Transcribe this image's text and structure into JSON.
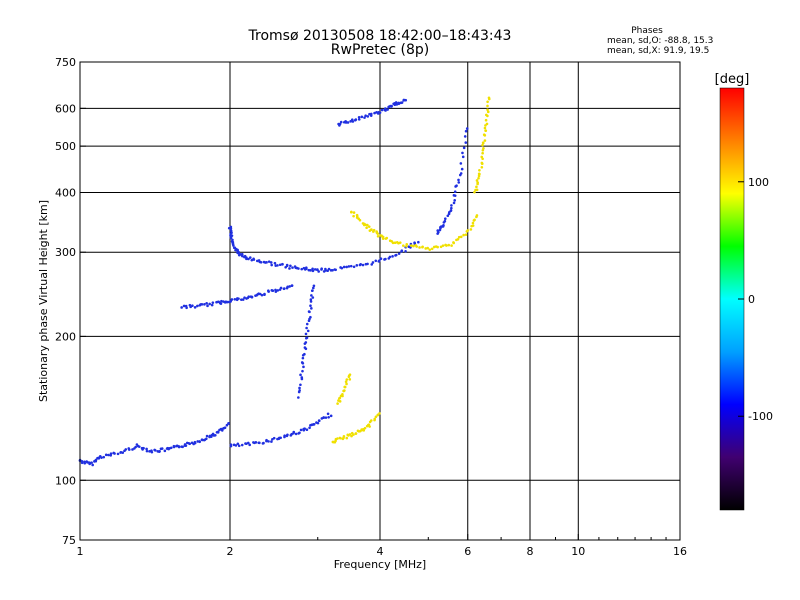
{
  "chart_data": {
    "type": "scatter",
    "title": "Tromsø 20130508 18:42:00–18:43:43",
    "subtitle": "RwPretec (8p)",
    "xlabel": "Frequency [MHz]",
    "ylabel": "Stationary phase Virtual Height [km]",
    "x_scale": "log",
    "y_scale": "log",
    "xlim": [
      1,
      16
    ],
    "ylim": [
      75,
      750
    ],
    "x_ticks": [
      {
        "value": 1,
        "label": "1"
      },
      {
        "value": 2,
        "label": "2"
      },
      {
        "value": 4,
        "label": "4"
      },
      {
        "value": 6,
        "label": "6"
      },
      {
        "value": 8,
        "label": "8"
      },
      {
        "value": 10,
        "label": "10"
      },
      {
        "value": 16,
        "label": "16"
      }
    ],
    "y_ticks": [
      {
        "value": 75,
        "label": "75"
      },
      {
        "value": 100,
        "label": "100"
      },
      {
        "value": 200,
        "label": "200"
      },
      {
        "value": 300,
        "label": "300"
      },
      {
        "value": 400,
        "label": "400"
      },
      {
        "value": 500,
        "label": "500"
      },
      {
        "value": 600,
        "label": "600"
      },
      {
        "value": 750,
        "label": "750"
      }
    ],
    "grid": true,
    "stats": {
      "header": "Phases",
      "line1": "mean, sd,O: -88.8, 15.3",
      "line2": "mean, sd,X:  91.9, 19.5"
    },
    "colorbar": {
      "label": "[deg]",
      "range": [
        -180,
        180
      ],
      "tick_labels": [
        "100",
        "0",
        "-100"
      ],
      "tick_values": [
        100,
        0,
        -100
      ],
      "colors": [
        "#000000",
        "#400070",
        "#0000ff",
        "#00a0ff",
        "#00ffff",
        "#00ff00",
        "#ffff00",
        "#ff8000",
        "#ff0000"
      ]
    },
    "series": [
      {
        "name": "O-mode",
        "mean_phase_deg": -88.8,
        "color": "#2030e0",
        "traces": [
          {
            "x": [
              1.0,
              1.05,
              1.1,
              1.2,
              1.3,
              1.4,
              1.5,
              1.6,
              1.7,
              1.8,
              1.9,
              2.0
            ],
            "y": [
              110,
              108,
              112,
              114,
              118,
              115,
              116,
              118,
              120,
              123,
              126,
              132
            ]
          },
          {
            "x": [
              2.0,
              2.2,
              2.4,
              2.6,
              2.8,
              3.0,
              3.2
            ],
            "y": [
              118,
              119,
              121,
              124,
              127,
              132,
              138
            ]
          },
          {
            "x": [
              2.0,
              2.02,
              2.05,
              2.1,
              2.2,
              2.4,
              2.6,
              2.8,
              3.0,
              3.2,
              3.6,
              4.0,
              4.4,
              4.8
            ],
            "y": [
              340,
              320,
              305,
              296,
              290,
              285,
              280,
              277,
              275,
              276,
              280,
              288,
              300,
              318
            ]
          },
          {
            "x": [
              1.6,
              1.75,
              1.9,
              2.0,
              2.15,
              2.3,
              2.5,
              2.7
            ],
            "y": [
              230,
              232,
              235,
              238,
              240,
              245,
              250,
              255
            ]
          },
          {
            "x": [
              2.75,
              2.8,
              2.85,
              2.9,
              2.95
            ],
            "y": [
              150,
              175,
              200,
              230,
              260
            ]
          },
          {
            "x": [
              5.2,
              5.4,
              5.6,
              5.8,
              6.0
            ],
            "y": [
              330,
              345,
              380,
              440,
              560
            ]
          },
          {
            "x": [
              3.3,
              3.5,
              3.8,
              4.1,
              4.3,
              4.5
            ],
            "y": [
              555,
              565,
              580,
              595,
              612,
              625
            ]
          }
        ]
      },
      {
        "name": "X-mode",
        "mean_phase_deg": 91.9,
        "color": "#f0e000",
        "traces": [
          {
            "x": [
              3.2,
              3.4,
              3.6,
              3.8,
              4.0
            ],
            "y": [
              120,
              123,
              126,
              130,
              140
            ]
          },
          {
            "x": [
              3.3,
              3.4,
              3.5
            ],
            "y": [
              145,
              155,
              168
            ]
          },
          {
            "x": [
              3.5,
              3.7,
              3.9,
              4.1,
              4.5,
              5.0,
              5.5,
              6.0,
              6.3
            ],
            "y": [
              365,
              345,
              330,
              320,
              310,
              305,
              310,
              330,
              360
            ]
          },
          {
            "x": [
              6.2,
              6.35,
              6.45,
              6.55,
              6.6
            ],
            "y": [
              400,
              440,
              500,
              560,
              640
            ]
          }
        ]
      }
    ]
  }
}
